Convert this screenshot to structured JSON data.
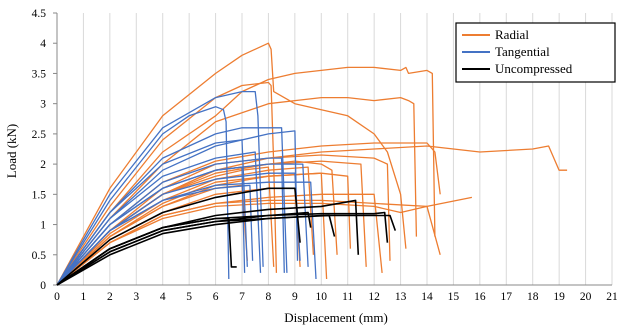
{
  "chart_data": {
    "type": "line",
    "title": "",
    "xlabel": "Displacement (mm)",
    "ylabel": "Load (kN)",
    "xlim": [
      0,
      21
    ],
    "ylim": [
      0,
      4.5
    ],
    "xticks": [
      "0",
      "1",
      "2",
      "3",
      "4",
      "5",
      "6",
      "7",
      "8",
      "9",
      "10",
      "11",
      "12",
      "13",
      "14",
      "15",
      "16",
      "17",
      "18",
      "19",
      "20",
      "21"
    ],
    "yticks": [
      "0",
      "0.5",
      "1",
      "1.5",
      "2",
      "2.5",
      "3",
      "3.5",
      "4",
      "4.5"
    ],
    "grid": "vertical",
    "legend_position": "top-right",
    "legend": [
      {
        "name": "Radial",
        "color": "#ED7D31"
      },
      {
        "name": "Tangential",
        "color": "#4472C4"
      },
      {
        "name": "Uncompressed",
        "color": "#000000"
      }
    ],
    "groups": [
      {
        "name": "Radial",
        "color": "#ED7D31",
        "curves": [
          {
            "x": [
              0,
              2,
              4,
              6,
              7,
              8,
              8.1,
              8.2,
              9,
              10,
              11,
              12,
              12.5,
              13,
              13.2
            ],
            "y": [
              0,
              1.6,
              2.8,
              3.5,
              3.8,
              4.0,
              3.9,
              3.2,
              3.0,
              2.9,
              2.8,
              2.5,
              2.2,
              1.5,
              0.6
            ]
          },
          {
            "x": [
              0,
              2,
              4,
              6,
              7,
              8,
              9,
              10,
              11,
              12,
              13,
              13.2,
              13.3,
              14,
              14.2,
              14.3
            ],
            "y": [
              0,
              1.2,
              2.2,
              2.8,
              3.2,
              3.4,
              3.5,
              3.55,
              3.6,
              3.6,
              3.55,
              3.6,
              3.5,
              3.55,
              3.5,
              0.8
            ]
          },
          {
            "x": [
              0,
              2,
              4,
              6,
              8,
              9,
              10,
              11,
              12,
              13,
              13.3,
              13.5,
              13.6
            ],
            "y": [
              0,
              1.1,
              2.0,
              2.7,
              3.0,
              3.05,
              3.1,
              3.1,
              3.05,
              3.1,
              3.05,
              3.0,
              0.8
            ]
          },
          {
            "x": [
              0,
              2,
              4,
              6,
              7,
              8,
              8.1,
              8.2,
              8.3
            ],
            "y": [
              0,
              1.3,
              2.4,
              3.1,
              3.3,
              3.35,
              3.3,
              2.0,
              0.2
            ]
          },
          {
            "x": [
              0,
              2,
              4,
              6,
              8,
              10,
              12,
              14,
              16,
              18,
              18.6,
              19,
              19.1,
              19.3
            ],
            "y": [
              0,
              0.9,
              1.5,
              1.9,
              2.1,
              2.2,
              2.25,
              2.3,
              2.2,
              2.25,
              2.3,
              1.9,
              1.9,
              1.9
            ]
          },
          {
            "x": [
              0,
              2,
              4,
              6,
              8,
              10,
              12,
              14,
              14.3,
              14.5
            ],
            "y": [
              0,
              1.0,
              1.7,
              2.05,
              2.2,
              2.3,
              2.35,
              2.35,
              2.2,
              1.5
            ]
          },
          {
            "x": [
              0,
              2,
              4,
              6,
              8,
              10,
              12,
              12.5,
              12.6
            ],
            "y": [
              0,
              0.9,
              1.6,
              2.0,
              2.1,
              2.15,
              2.1,
              2.0,
              0.4
            ]
          },
          {
            "x": [
              0,
              2,
              4,
              6,
              8,
              10,
              11.5,
              11.7
            ],
            "y": [
              0,
              0.9,
              1.5,
              1.9,
              2.0,
              2.05,
              2.0,
              0.3
            ]
          },
          {
            "x": [
              0,
              2,
              4,
              6,
              8,
              9,
              10,
              10.4,
              10.6
            ],
            "y": [
              0,
              0.9,
              1.5,
              1.85,
              2.0,
              2.05,
              2.0,
              1.9,
              0.5
            ]
          },
          {
            "x": [
              0,
              2,
              4,
              6,
              7,
              8,
              8.2
            ],
            "y": [
              0,
              0.9,
              1.5,
              1.8,
              1.9,
              1.95,
              0.3
            ]
          },
          {
            "x": [
              0,
              2,
              4,
              6,
              8,
              10,
              12,
              14,
              15.7
            ],
            "y": [
              0,
              0.7,
              1.15,
              1.35,
              1.4,
              1.4,
              1.35,
              1.3,
              1.45
            ]
          },
          {
            "x": [
              0,
              2,
              4,
              6,
              8,
              10,
              12,
              13,
              14,
              14.5
            ],
            "y": [
              0,
              0.7,
              1.1,
              1.3,
              1.35,
              1.35,
              1.3,
              1.2,
              1.3,
              0.5
            ]
          },
          {
            "x": [
              0,
              2,
              4,
              6,
              8,
              10,
              12,
              12.3
            ],
            "y": [
              0,
              0.7,
              1.15,
              1.35,
              1.45,
              1.5,
              1.5,
              0.2
            ]
          },
          {
            "x": [
              0,
              2,
              4,
              6,
              8,
              9,
              9.2
            ],
            "y": [
              0,
              0.75,
              1.2,
              1.5,
              1.6,
              1.6,
              0.3
            ]
          },
          {
            "x": [
              0,
              2,
              4,
              6,
              7,
              7.2
            ],
            "y": [
              0,
              0.8,
              1.3,
              1.6,
              1.65,
              0.4
            ]
          },
          {
            "x": [
              0,
              2,
              4,
              6,
              8,
              10,
              10.2
            ],
            "y": [
              0,
              0.8,
              1.3,
              1.65,
              1.8,
              1.85,
              0.1
            ]
          },
          {
            "x": [
              0,
              2,
              4,
              6,
              8,
              9.5,
              9.7
            ],
            "y": [
              0,
              0.85,
              1.4,
              1.75,
              1.9,
              1.95,
              0.5
            ]
          },
          {
            "x": [
              0,
              2,
              4,
              6,
              8,
              10,
              11,
              11.1
            ],
            "y": [
              0,
              0.8,
              1.35,
              1.7,
              1.8,
              1.85,
              1.8,
              0.6
            ]
          }
        ]
      },
      {
        "name": "Tangential",
        "color": "#4472C4",
        "curves": [
          {
            "x": [
              0,
              2,
              4,
              6,
              7,
              7.5,
              7.6,
              7.8
            ],
            "y": [
              0,
              1.5,
              2.6,
              3.1,
              3.2,
              3.2,
              2.8,
              0.3
            ]
          },
          {
            "x": [
              0,
              2,
              4,
              5,
              6,
              6.3,
              6.4,
              6.5
            ],
            "y": [
              0,
              1.4,
              2.5,
              2.8,
              2.95,
              2.9,
              2.7,
              0.1
            ]
          },
          {
            "x": [
              0,
              2,
              4,
              6,
              7,
              8,
              8.5,
              8.7
            ],
            "y": [
              0,
              1.2,
              2.1,
              2.5,
              2.6,
              2.6,
              2.6,
              0.2
            ]
          },
          {
            "x": [
              0,
              2,
              4,
              6,
              8,
              9,
              9.1
            ],
            "y": [
              0,
              1.1,
              1.9,
              2.3,
              2.5,
              2.55,
              0.4
            ]
          },
          {
            "x": [
              0,
              2,
              4,
              6,
              7,
              7.2
            ],
            "y": [
              0,
              1.2,
              2.0,
              2.35,
              2.4,
              0.3
            ]
          },
          {
            "x": [
              0,
              2,
              4,
              6,
              7.5,
              7.7
            ],
            "y": [
              0,
              1.1,
              1.8,
              2.1,
              2.2,
              0.2
            ]
          },
          {
            "x": [
              0,
              2,
              4,
              6,
              8,
              8.5,
              8.6
            ],
            "y": [
              0,
              1.0,
              1.7,
              2.0,
              2.1,
              2.1,
              0.2
            ]
          },
          {
            "x": [
              0,
              2,
              4,
              6,
              8,
              9.3,
              9.5
            ],
            "y": [
              0,
              1.0,
              1.6,
              1.9,
              2.0,
              2.0,
              0.3
            ]
          },
          {
            "x": [
              0,
              2,
              4,
              6,
              7,
              7.1
            ],
            "y": [
              0,
              1.0,
              1.6,
              1.9,
              1.95,
              0.2
            ]
          },
          {
            "x": [
              0,
              2,
              4,
              6,
              8,
              9,
              9.2
            ],
            "y": [
              0,
              0.9,
              1.5,
              1.75,
              1.85,
              1.85,
              0.4
            ]
          },
          {
            "x": [
              0,
              2,
              4,
              6,
              8,
              9.6,
              9.8
            ],
            "y": [
              0,
              0.9,
              1.4,
              1.65,
              1.7,
              1.7,
              0.1
            ]
          },
          {
            "x": [
              0,
              2,
              4,
              6,
              7.3,
              7.4
            ],
            "y": [
              0,
              0.9,
              1.4,
              1.6,
              1.65,
              0.4
            ]
          }
        ]
      },
      {
        "name": "Uncompressed",
        "color": "#000000",
        "curves": [
          {
            "x": [
              0,
              2,
              4,
              6,
              8,
              9,
              9.2
            ],
            "y": [
              0,
              0.75,
              1.2,
              1.45,
              1.6,
              1.6,
              0.7
            ]
          },
          {
            "x": [
              0,
              2,
              4,
              6,
              8,
              10,
              11.3,
              11.4
            ],
            "y": [
              0,
              0.6,
              0.95,
              1.15,
              1.25,
              1.3,
              1.4,
              0.5
            ]
          },
          {
            "x": [
              0,
              2,
              4,
              6,
              8,
              10,
              12,
              12.4,
              12.5
            ],
            "y": [
              0,
              0.55,
              0.9,
              1.05,
              1.15,
              1.18,
              1.18,
              1.2,
              0.7
            ]
          },
          {
            "x": [
              0,
              2,
              4,
              6,
              8,
              10,
              12,
              12.6,
              12.8
            ],
            "y": [
              0,
              0.5,
              0.85,
              1.0,
              1.1,
              1.15,
              1.15,
              1.15,
              0.9
            ]
          },
          {
            "x": [
              0,
              2,
              4,
              6,
              8,
              9.5,
              9.6
            ],
            "y": [
              0,
              0.6,
              0.95,
              1.1,
              1.15,
              1.2,
              0.95
            ]
          },
          {
            "x": [
              0,
              2,
              4,
              6,
              6.5,
              6.6,
              6.8
            ],
            "y": [
              0,
              0.6,
              0.95,
              1.1,
              1.1,
              0.3,
              0.3
            ]
          },
          {
            "x": [
              0,
              2,
              4,
              6,
              8,
              10.3,
              10.5
            ],
            "y": [
              0,
              0.55,
              0.9,
              1.05,
              1.1,
              1.15,
              0.8
            ]
          }
        ]
      }
    ]
  }
}
